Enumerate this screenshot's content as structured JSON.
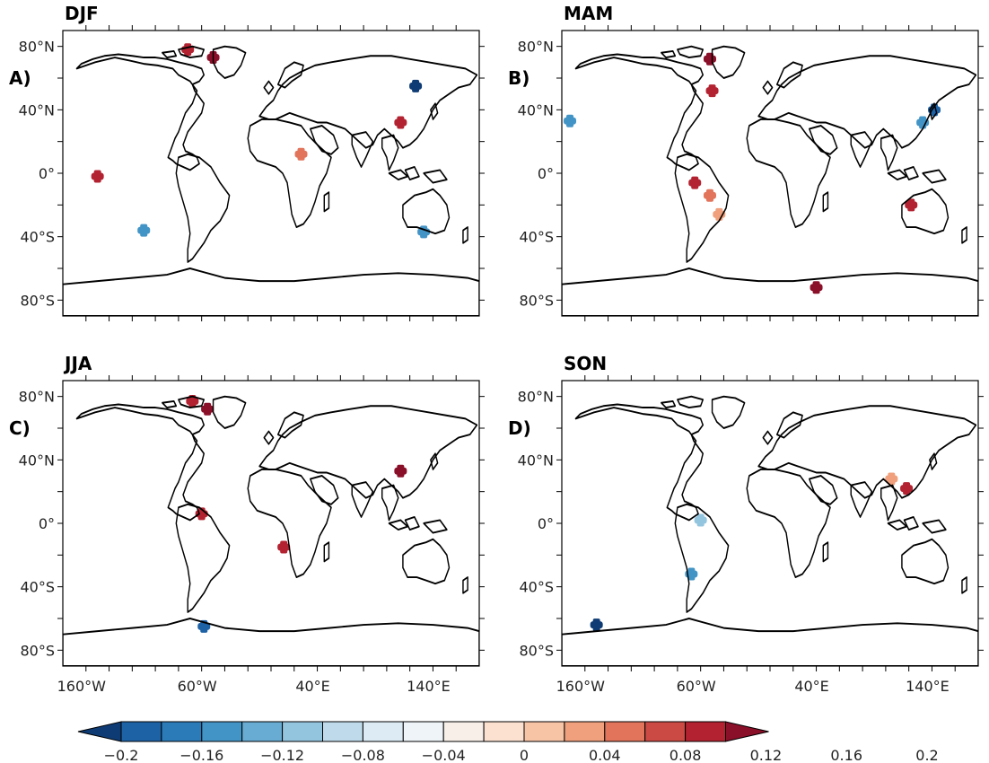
{
  "panels": [
    {
      "title": "DJF",
      "letter": "A)"
    },
    {
      "title": "MAM",
      "letter": "B)"
    },
    {
      "title": "JJA",
      "letter": "C)"
    },
    {
      "title": "SON",
      "letter": "D)"
    }
  ],
  "axes": {
    "lat_ticks": [
      {
        "value": 80,
        "label": "80°N"
      },
      {
        "value": 40,
        "label": "40°N"
      },
      {
        "value": 0,
        "label": "0°"
      },
      {
        "value": -40,
        "label": "40°S"
      },
      {
        "value": -80,
        "label": "80°S"
      }
    ],
    "lon_ticks": [
      {
        "value": -160,
        "label": "160°W"
      },
      {
        "value": -60,
        "label": "60°W"
      },
      {
        "value": 40,
        "label": "40°E"
      },
      {
        "value": 140,
        "label": "140°E"
      }
    ],
    "lon_range": [
      -180,
      180
    ],
    "lat_range": [
      -90,
      90
    ]
  },
  "colorbar": {
    "colors": [
      "#0e3b74",
      "#1e62a6",
      "#2c7bb9",
      "#4394c6",
      "#68acd3",
      "#93c5df",
      "#bfdbeb",
      "#dcebf4",
      "#eef4f8",
      "#f8efe9",
      "#fce1d1",
      "#f7c4a6",
      "#f0a07c",
      "#e2745b",
      "#cc4a44",
      "#b32230",
      "#8a0f28"
    ],
    "labels": [
      "−0.2",
      "−0.16",
      "−0.12",
      "−0.08",
      "−0.04",
      "0",
      "0.04",
      "0.08",
      "0.12",
      "0.16",
      "0.2"
    ],
    "range": [
      -0.2,
      0.2
    ],
    "extend": "both"
  },
  "map_data": {
    "DJF": [
      {
        "lon": -150,
        "lat": -2,
        "value": 0.16
      },
      {
        "lon": -110,
        "lat": -36,
        "value": -0.12
      },
      {
        "lon": -50,
        "lat": 73,
        "value": 0.18
      },
      {
        "lon": -72,
        "lat": 78,
        "value": 0.16
      },
      {
        "lon": 125,
        "lat": 55,
        "value": -0.18
      },
      {
        "lon": 112,
        "lat": 32,
        "value": 0.16
      },
      {
        "lon": 132,
        "lat": -37,
        "value": -0.12
      },
      {
        "lon": 26,
        "lat": 12,
        "value": 0.12
      }
    ],
    "MAM": [
      {
        "lon": -173,
        "lat": 33,
        "value": -0.12
      },
      {
        "lon": -52,
        "lat": 72,
        "value": 0.18
      },
      {
        "lon": -50,
        "lat": 52,
        "value": 0.16
      },
      {
        "lon": -65,
        "lat": -6,
        "value": 0.16
      },
      {
        "lon": -52,
        "lat": -14,
        "value": 0.12
      },
      {
        "lon": -44,
        "lat": -26,
        "value": 0.1
      },
      {
        "lon": 40,
        "lat": -72,
        "value": 0.18
      },
      {
        "lon": 142,
        "lat": 40,
        "value": -0.16
      },
      {
        "lon": 132,
        "lat": 32,
        "value": -0.12
      },
      {
        "lon": 122,
        "lat": -20,
        "value": 0.16
      }
    ],
    "JJA": [
      {
        "lon": -55,
        "lat": 72,
        "value": 0.18
      },
      {
        "lon": -68,
        "lat": 77,
        "value": 0.16
      },
      {
        "lon": -60,
        "lat": 6,
        "value": 0.16
      },
      {
        "lon": 11,
        "lat": -15,
        "value": 0.16
      },
      {
        "lon": 112,
        "lat": 33,
        "value": 0.18
      },
      {
        "lon": -58,
        "lat": -65,
        "value": -0.16
      }
    ],
    "SON": [
      {
        "lon": -150,
        "lat": -64,
        "value": -0.2
      },
      {
        "lon": -68,
        "lat": -32,
        "value": -0.12
      },
      {
        "lon": -60,
        "lat": 2,
        "value": -0.08
      },
      {
        "lon": 105,
        "lat": 28,
        "value": 0.1
      },
      {
        "lon": 118,
        "lat": 22,
        "value": 0.16
      }
    ]
  }
}
